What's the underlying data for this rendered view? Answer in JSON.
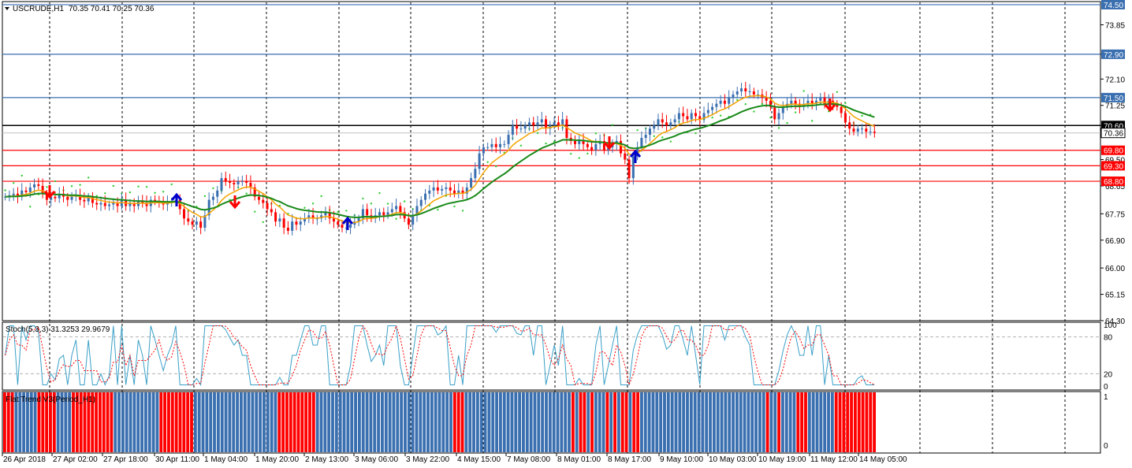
{
  "header": {
    "symbol": "USCRUDE,H1",
    "ohlc": "70.35 70.41 70.25 70.36"
  },
  "price_axis": {
    "ticks": [
      "73.85",
      "72.90",
      "72.10",
      "71.25",
      "70.60",
      "70.36",
      "69.50",
      "68.65",
      "67.75",
      "66.90",
      "66.00",
      "65.15",
      "64.30"
    ],
    "ylim": [
      64.3,
      74.6
    ]
  },
  "levels": [
    {
      "value": 74.5,
      "label": "74.50",
      "color": "#3a6fb0"
    },
    {
      "value": 72.9,
      "label": "72.90",
      "color": "#3a6fb0"
    },
    {
      "value": 71.5,
      "label": "71.50",
      "color": "#3a6fb0"
    },
    {
      "value": 70.6,
      "label": "70.60",
      "color": "#000000"
    },
    {
      "value": 69.8,
      "label": "69.80",
      "color": "#ff0000"
    },
    {
      "value": 69.3,
      "label": "69.30",
      "color": "#ff0000"
    },
    {
      "value": 68.8,
      "label": "68.80",
      "color": "#ff0000"
    }
  ],
  "current_price": {
    "value": 70.36,
    "label": "70.36"
  },
  "time_axis": {
    "labels": [
      "26 Apr 2018",
      "27 Apr 02:00",
      "27 Apr 18:00",
      "30 Apr 11:00",
      "1 May 04:00",
      "1 May 20:00",
      "2 May 13:00",
      "3 May 06:00",
      "3 May 22:00",
      "4 May 15:00",
      "7 May 08:00",
      "8 May 01:00",
      "8 May 17:00",
      "9 May 10:00",
      "10 May 03:00",
      "10 May 19:00",
      "11 May 12:00",
      "14 May 05:00"
    ]
  },
  "stochastic": {
    "title": "Stoch(5,3,3) 31.3253 29.9679",
    "ticks": [
      "100",
      "80",
      "20",
      "0"
    ]
  },
  "flat_trend": {
    "title": "Flat Trend V3(Period_H1)",
    "ticks": [
      "1",
      "0"
    ]
  },
  "colors": {
    "bull": "#3a6fb0",
    "bear": "#ff0000",
    "ma_fast": "#f5a300",
    "ma_slow": "#1a8a1a",
    "sar": "#33cc33",
    "grid": "#000000",
    "stoch_main": "#3aa0c8",
    "stoch_signal": "#ff0000",
    "arrow_up": "#0000cc",
    "arrow_down": "#ff0000"
  },
  "chart_data": {
    "type": "candlestick",
    "title": "USCRUDE,H1",
    "ylim": [
      64.3,
      74.6
    ],
    "close": [
      68.3,
      68.35,
      68.4,
      68.3,
      68.5,
      68.45,
      68.6,
      68.7,
      68.65,
      68.4,
      68.2,
      68.3,
      68.25,
      68.4,
      68.3,
      68.2,
      68.3,
      68.35,
      68.2,
      68.15,
      68.3,
      68.1,
      68.05,
      68.1,
      68.0,
      68.05,
      68.1,
      68.0,
      68.2,
      68.0,
      68.1,
      68.0,
      68.15,
      68.1,
      68.0,
      68.2,
      68.15,
      68.1,
      68.05,
      68.1,
      68.15,
      68.2,
      67.9,
      67.6,
      67.5,
      67.4,
      67.5,
      67.3,
      67.7,
      68.2,
      68.3,
      68.5,
      68.9,
      68.8,
      68.75,
      68.7,
      68.8,
      68.8,
      68.75,
      68.6,
      68.3,
      68.2,
      68.1,
      67.9,
      67.8,
      67.5,
      67.6,
      67.3,
      67.2,
      67.5,
      67.4,
      67.5,
      67.6,
      67.7,
      67.6,
      67.6,
      67.7,
      67.8,
      67.6,
      67.5,
      67.4,
      67.3,
      67.3,
      67.4,
      67.5,
      67.6,
      67.9,
      67.7,
      67.6,
      67.7,
      67.8,
      67.7,
      67.8,
      67.9,
      68.0,
      67.8,
      67.6,
      67.4,
      67.7,
      68.0,
      68.2,
      68.4,
      68.5,
      68.6,
      68.5,
      68.55,
      68.6,
      68.5,
      68.4,
      68.5,
      68.4,
      68.6,
      68.9,
      69.2,
      69.7,
      69.9,
      69.9,
      70.0,
      69.9,
      70.0,
      70.0,
      70.3,
      70.6,
      70.5,
      70.5,
      70.6,
      70.7,
      70.6,
      70.7,
      70.8,
      70.5,
      70.6,
      70.7,
      70.6,
      70.8,
      70.2,
      70.1,
      70.0,
      70.1,
      70.0,
      69.9,
      69.8,
      70.0,
      70.1,
      69.8,
      69.9,
      70.0,
      70.1,
      69.7,
      69.5,
      68.9,
      69.6,
      69.9,
      70.2,
      70.3,
      70.5,
      70.6,
      70.8,
      70.7,
      70.6,
      70.7,
      70.8,
      71.0,
      70.9,
      70.8,
      71.0,
      70.9,
      70.8,
      71.0,
      71.1,
      71.2,
      71.3,
      71.4,
      71.3,
      71.5,
      71.6,
      71.7,
      71.8,
      71.7,
      71.7,
      71.6,
      71.6,
      71.5,
      71.4,
      71.2,
      70.8,
      71.0,
      71.2,
      71.3,
      71.4,
      71.3,
      71.2,
      71.3,
      71.4,
      71.3,
      71.4,
      71.5,
      71.3,
      71.4,
      71.3,
      71.2,
      71.0,
      70.7,
      70.5,
      70.4,
      70.5,
      70.5,
      70.4,
      70.4,
      70.36
    ],
    "flat_trend_bars": [
      "r",
      "r",
      "r",
      "b",
      "b",
      "b",
      "b",
      "b",
      "b",
      "r",
      "r",
      "r",
      "r",
      "r",
      "b",
      "b",
      "b",
      "b",
      "r",
      "r",
      "r",
      "r",
      "r",
      "r",
      "r",
      "r",
      "r",
      "r",
      "r",
      "b",
      "b",
      "b",
      "b",
      "b",
      "b",
      "b",
      "b",
      "b",
      "b",
      "b",
      "b",
      "r",
      "r",
      "r",
      "r",
      "r",
      "r",
      "r",
      "r",
      "r",
      "b",
      "b",
      "b",
      "b",
      "b",
      "b",
      "b",
      "b",
      "b",
      "b",
      "b",
      "b",
      "b",
      "b",
      "b",
      "b",
      "b",
      "b",
      "b",
      "b",
      "b",
      "b",
      "r",
      "r",
      "r",
      "r",
      "r",
      "r",
      "r",
      "r",
      "r",
      "r",
      "b",
      "b",
      "b",
      "b",
      "b",
      "b",
      "b",
      "b",
      "b",
      "b",
      "b",
      "b",
      "b",
      "b",
      "b",
      "b",
      "b",
      "b",
      "b",
      "b",
      "b",
      "b",
      "b",
      "b",
      "b",
      "b",
      "b",
      "b",
      "b",
      "b",
      "b",
      "b",
      "b",
      "b",
      "b",
      "b",
      "r",
      "r",
      "r",
      "b",
      "b",
      "b",
      "b",
      "b",
      "b",
      "b",
      "b",
      "b",
      "b",
      "b",
      "b",
      "b",
      "b",
      "b",
      "b",
      "b",
      "b",
      "b",
      "b",
      "b",
      "b",
      "b",
      "b",
      "b",
      "b",
      "b",
      "b",
      "r",
      "b",
      "r",
      "r",
      "b",
      "r",
      "b",
      "b",
      "b",
      "r",
      "b",
      "r",
      "b",
      "r",
      "r",
      "b",
      "r",
      "r",
      "b",
      "b",
      "b",
      "b",
      "b",
      "b",
      "b",
      "b",
      "b",
      "b",
      "b",
      "b",
      "b",
      "b",
      "b",
      "b",
      "b",
      "b",
      "b",
      "b",
      "b",
      "b",
      "b",
      "b",
      "b",
      "b",
      "b",
      "b",
      "b",
      "b",
      "b",
      "b",
      "b",
      "r",
      "b",
      "b",
      "r",
      "b",
      "b",
      "b",
      "b",
      "r",
      "r",
      "r",
      "b",
      "b",
      "b",
      "b",
      "b",
      "b",
      "b",
      "r",
      "r",
      "r",
      "r",
      "r",
      "r",
      "r",
      "r",
      "r",
      "r",
      "r"
    ]
  }
}
